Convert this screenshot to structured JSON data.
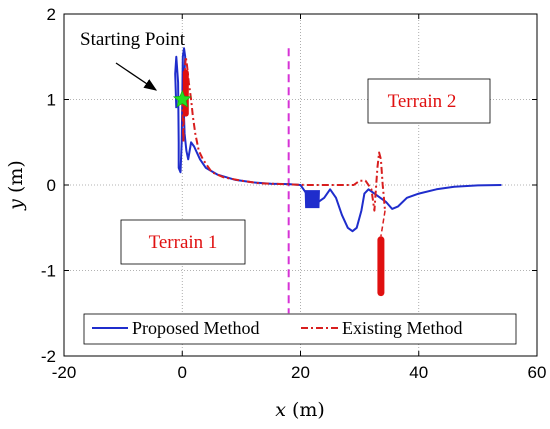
{
  "chart_data": {
    "type": "line",
    "xlabel": {
      "var": "x",
      "unit": " (m)"
    },
    "ylabel": {
      "var": "y",
      "unit": " (m)"
    },
    "xlim": [
      -20,
      60
    ],
    "ylim": [
      -2,
      2
    ],
    "xticks": [
      -20,
      0,
      20,
      40,
      60
    ],
    "yticks": [
      -2,
      -1,
      0,
      1,
      2
    ],
    "grid": true,
    "legend": "bottom",
    "series": [
      {
        "name": "Proposed Method",
        "color": "#1f2dcc",
        "style": "solid",
        "points": [
          [
            -1.0,
            0.9
          ],
          [
            -1.2,
            1.3
          ],
          [
            -1.0,
            1.5
          ],
          [
            -0.7,
            1.2
          ],
          [
            -0.6,
            0.5
          ],
          [
            -0.6,
            0.2
          ],
          [
            -0.3,
            0.15
          ],
          [
            -0.1,
            0.5
          ],
          [
            0,
            1.0
          ],
          [
            0.1,
            1.5
          ],
          [
            0.3,
            1.6
          ],
          [
            0.5,
            1.5
          ],
          [
            0.3,
            1.2
          ],
          [
            0.2,
            1.0
          ],
          [
            0.4,
            0.6
          ],
          [
            0.7,
            0.4
          ],
          [
            1.0,
            0.3
          ],
          [
            1.5,
            0.5
          ],
          [
            2.0,
            0.45
          ],
          [
            3,
            0.3
          ],
          [
            4,
            0.2
          ],
          [
            6,
            0.12
          ],
          [
            9,
            0.06
          ],
          [
            12,
            0.03
          ],
          [
            15,
            0.015
          ],
          [
            18,
            0.01
          ],
          [
            20,
            0.0
          ],
          [
            20.5,
            -0.05
          ],
          [
            21,
            -0.1
          ],
          [
            21.5,
            -0.2
          ],
          [
            22,
            -0.18
          ],
          [
            22.5,
            -0.2
          ],
          [
            23,
            -0.2
          ],
          [
            24,
            -0.15
          ],
          [
            25,
            -0.05
          ],
          [
            26,
            -0.15
          ],
          [
            27,
            -0.35
          ],
          [
            28,
            -0.5
          ],
          [
            28.8,
            -0.54
          ],
          [
            29.5,
            -0.5
          ],
          [
            30.3,
            -0.3
          ],
          [
            30.8,
            -0.1
          ],
          [
            31.5,
            -0.05
          ],
          [
            32.5,
            -0.1
          ],
          [
            33.5,
            -0.15
          ],
          [
            34.5,
            -0.2
          ],
          [
            35.5,
            -0.28
          ],
          [
            36.5,
            -0.25
          ],
          [
            38,
            -0.15
          ],
          [
            40,
            -0.1
          ],
          [
            43,
            -0.05
          ],
          [
            46,
            -0.02
          ],
          [
            50,
            -0.005
          ],
          [
            54,
            0
          ]
        ]
      },
      {
        "name": "Existing Method",
        "color": "#d81e1e",
        "style": "dash-dot",
        "points": [
          [
            0.0,
            1.0
          ],
          [
            0.2,
            0.5
          ],
          [
            0.4,
            1.3
          ],
          [
            0.6,
            1.5
          ],
          [
            0.8,
            1.4
          ],
          [
            1.1,
            1.2
          ],
          [
            1.5,
            1.0
          ],
          [
            1.8,
            0.8
          ],
          [
            2.2,
            0.6
          ],
          [
            2.8,
            0.4
          ],
          [
            3.5,
            0.3
          ],
          [
            5,
            0.15
          ],
          [
            7,
            0.09
          ],
          [
            10,
            0.05
          ],
          [
            13,
            0.02
          ],
          [
            17,
            0.01
          ],
          [
            21,
            0.0
          ],
          [
            25,
            0.0
          ],
          [
            29,
            0.0
          ],
          [
            30,
            0.05
          ],
          [
            31,
            0.05
          ],
          [
            32,
            -0.05
          ],
          [
            32.5,
            -0.3
          ],
          [
            33,
            0.2
          ],
          [
            33.3,
            0.38
          ],
          [
            33.6,
            0.3
          ],
          [
            33.9,
            0.0
          ],
          [
            34.1,
            -0.15
          ],
          [
            34.3,
            -0.3
          ]
        ]
      }
    ],
    "existing_oscillation": {
      "x": 33.6,
      "y_from": -0.6,
      "y_to": -1.3
    },
    "divider": {
      "x": 18,
      "color": "#d633d6"
    },
    "start_marker": {
      "x": 0,
      "y": 1.0,
      "color": "#22dd22"
    },
    "annotations": {
      "start": "Starting Point",
      "terrain1": "Terrain 1",
      "terrain2": "Terrain 2"
    }
  }
}
